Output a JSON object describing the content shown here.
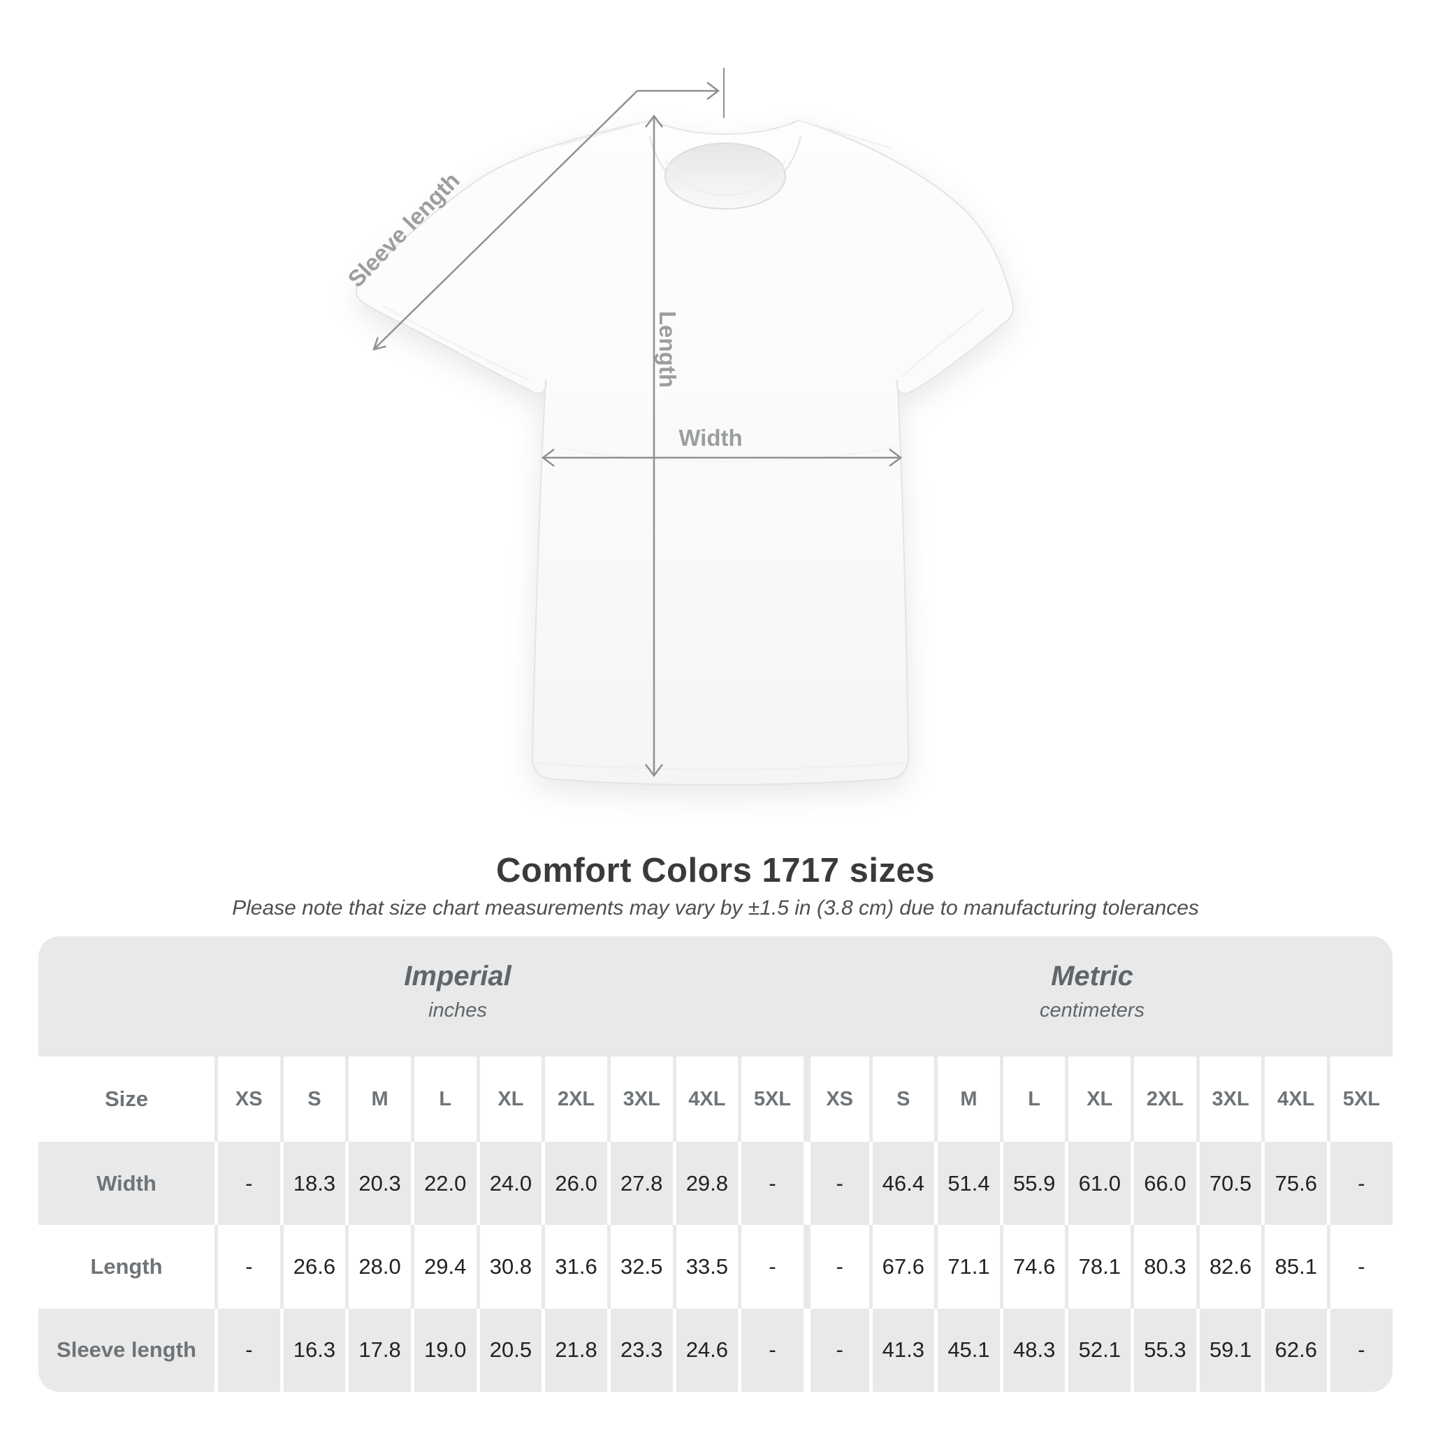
{
  "diagram": {
    "labels": {
      "sleeve_length": "Sleeve length",
      "length": "Length",
      "width": "Width"
    }
  },
  "title": "Comfort Colors 1717 sizes",
  "subtitle": "Please note that size chart measurements may vary by ±1.5 in (3.8 cm) due to manufacturing tolerances",
  "size_table": {
    "groups": [
      {
        "name": "Imperial",
        "unit": "inches"
      },
      {
        "name": "Metric",
        "unit": "centimeters"
      }
    ],
    "size_header_label": "Size",
    "sizes": [
      "XS",
      "S",
      "M",
      "L",
      "XL",
      "2XL",
      "3XL",
      "4XL",
      "5XL"
    ],
    "rows": [
      {
        "label": "Width",
        "imperial": [
          "-",
          "18.3",
          "20.3",
          "22.0",
          "24.0",
          "26.0",
          "27.8",
          "29.8",
          "-"
        ],
        "metric": [
          "-",
          "46.4",
          "51.4",
          "55.9",
          "61.0",
          "66.0",
          "70.5",
          "75.6",
          "-"
        ]
      },
      {
        "label": "Length",
        "imperial": [
          "-",
          "26.6",
          "28.0",
          "29.4",
          "30.8",
          "31.6",
          "32.5",
          "33.5",
          "-"
        ],
        "metric": [
          "-",
          "67.6",
          "71.1",
          "74.6",
          "78.1",
          "80.3",
          "82.6",
          "85.1",
          "-"
        ]
      },
      {
        "label": "Sleeve length",
        "imperial": [
          "-",
          "16.3",
          "17.8",
          "19.0",
          "20.5",
          "21.8",
          "23.3",
          "24.6",
          "-"
        ],
        "metric": [
          "-",
          "41.3",
          "45.1",
          "48.3",
          "52.1",
          "55.3",
          "59.1",
          "62.6",
          "-"
        ]
      }
    ]
  },
  "colors": {
    "table_band_gray": "#e9e9e9",
    "header_text_gray": "#5f666b",
    "size_text_gray": "#6e7478",
    "value_text": "#222222",
    "title_text": "#3a3a3a",
    "diagram_line_gray": "#8e9092",
    "diagram_label_gray": "#9b9ea1"
  }
}
